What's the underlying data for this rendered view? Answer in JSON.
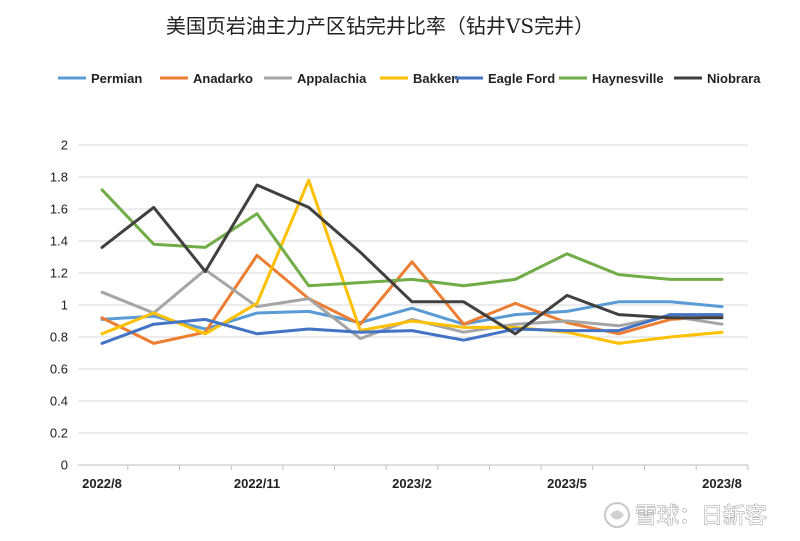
{
  "watermark": {
    "text": "雪球：日新客"
  },
  "chart_data": {
    "type": "line",
    "title": "美国页岩油主力产区钻完井比率（钻井VS完井）",
    "legend_position": "top",
    "grid": true,
    "ylim": [
      0,
      2
    ],
    "yticks": [
      "0",
      "0.2",
      "0.4",
      "0.6",
      "0.8",
      "1",
      "1.2",
      "1.4",
      "1.6",
      "1.8",
      "2"
    ],
    "x": [
      "2022/8",
      "2022/9",
      "2022/10",
      "2022/11",
      "2022/12",
      "2023/1",
      "2023/2",
      "2023/3",
      "2023/4",
      "2023/5",
      "2023/6",
      "2023/7",
      "2023/8"
    ],
    "xtick_labels": [
      "2022/8",
      "2022/11",
      "2023/2",
      "2023/5",
      "2023/8"
    ],
    "series": [
      {
        "name": "Permian",
        "color": "#5B9BD5",
        "values": [
          0.91,
          0.93,
          0.85,
          0.95,
          0.96,
          0.89,
          0.98,
          0.88,
          0.94,
          0.96,
          1.02,
          1.02,
          0.99
        ]
      },
      {
        "name": "Anadarko",
        "color": "#ED7D31",
        "values": [
          0.92,
          0.76,
          0.83,
          1.31,
          1.04,
          0.88,
          1.27,
          0.88,
          1.01,
          0.89,
          0.82,
          0.91,
          0.93
        ]
      },
      {
        "name": "Appalachia",
        "color": "#A5A5A5",
        "values": [
          1.08,
          0.95,
          1.22,
          0.99,
          1.04,
          0.79,
          0.91,
          0.83,
          0.88,
          0.9,
          0.87,
          0.93,
          0.88
        ]
      },
      {
        "name": "Bakken",
        "color": "#FFC000",
        "values": [
          0.82,
          0.95,
          0.82,
          1.01,
          1.78,
          0.84,
          0.9,
          0.86,
          0.86,
          0.83,
          0.76,
          0.8,
          0.83
        ]
      },
      {
        "name": "Eagle Ford",
        "color": "#4472C4",
        "values": [
          0.76,
          0.88,
          0.91,
          0.82,
          0.85,
          0.83,
          0.84,
          0.78,
          0.85,
          0.84,
          0.84,
          0.94,
          0.94
        ]
      },
      {
        "name": "Haynesville",
        "color": "#70AD47",
        "values": [
          1.72,
          1.38,
          1.36,
          1.57,
          1.12,
          1.14,
          1.16,
          1.12,
          1.16,
          1.32,
          1.19,
          1.16,
          1.16
        ]
      },
      {
        "name": "Niobrara",
        "color": "#404040",
        "values": [
          1.36,
          1.61,
          1.21,
          1.75,
          1.61,
          1.33,
          1.02,
          1.02,
          0.82,
          1.06,
          0.94,
          0.92,
          0.92
        ]
      }
    ]
  }
}
